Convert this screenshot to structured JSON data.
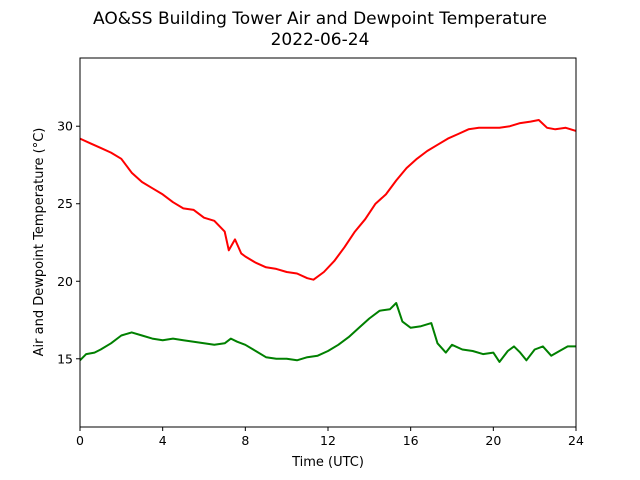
{
  "chart_data": {
    "type": "line",
    "title": "AO&SS Building Tower Air and Dewpoint Temperature",
    "subtitle": "2022-06-24",
    "xlabel": "Time (UTC)",
    "ylabel": "Air and Dewpoint Temperature (°C)",
    "xlim": [
      0,
      24
    ],
    "ylim": [
      10.6,
      34.4
    ],
    "x_ticks": [
      0,
      4,
      8,
      12,
      16,
      20,
      24
    ],
    "y_ticks": [
      15,
      20,
      25,
      30
    ],
    "grid": false,
    "legend": "none",
    "series": [
      {
        "color": "#ff0000",
        "points": [
          [
            0,
            29.2
          ],
          [
            0.5,
            28.9
          ],
          [
            1,
            28.6
          ],
          [
            1.5,
            28.3
          ],
          [
            2,
            27.9
          ],
          [
            2.5,
            27.0
          ],
          [
            3,
            26.4
          ],
          [
            3.5,
            26.0
          ],
          [
            4,
            25.6
          ],
          [
            4.5,
            25.1
          ],
          [
            5,
            24.7
          ],
          [
            5.5,
            24.6
          ],
          [
            6,
            24.1
          ],
          [
            6.5,
            23.9
          ],
          [
            7,
            23.2
          ],
          [
            7.2,
            22.0
          ],
          [
            7.5,
            22.7
          ],
          [
            7.8,
            21.8
          ],
          [
            8,
            21.6
          ],
          [
            8.5,
            21.2
          ],
          [
            9,
            20.9
          ],
          [
            9.5,
            20.8
          ],
          [
            10,
            20.6
          ],
          [
            10.5,
            20.5
          ],
          [
            11,
            20.2
          ],
          [
            11.3,
            20.1
          ],
          [
            11.8,
            20.6
          ],
          [
            12.3,
            21.3
          ],
          [
            12.8,
            22.2
          ],
          [
            13.3,
            23.2
          ],
          [
            13.8,
            24.0
          ],
          [
            14.3,
            25.0
          ],
          [
            14.8,
            25.6
          ],
          [
            15.3,
            26.5
          ],
          [
            15.8,
            27.3
          ],
          [
            16.3,
            27.9
          ],
          [
            16.8,
            28.4
          ],
          [
            17.3,
            28.8
          ],
          [
            17.8,
            29.2
          ],
          [
            18.3,
            29.5
          ],
          [
            18.8,
            29.8
          ],
          [
            19.3,
            29.9
          ],
          [
            19.8,
            29.9
          ],
          [
            20.3,
            29.9
          ],
          [
            20.8,
            30.0
          ],
          [
            21.3,
            30.2
          ],
          [
            21.8,
            30.3
          ],
          [
            22.2,
            30.4
          ],
          [
            22.6,
            29.9
          ],
          [
            23,
            29.8
          ],
          [
            23.5,
            29.9
          ],
          [
            24,
            29.7
          ]
        ]
      },
      {
        "color": "#008000",
        "points": [
          [
            0,
            14.9
          ],
          [
            0.3,
            15.3
          ],
          [
            0.7,
            15.4
          ],
          [
            1,
            15.6
          ],
          [
            1.5,
            16.0
          ],
          [
            2,
            16.5
          ],
          [
            2.5,
            16.7
          ],
          [
            3,
            16.5
          ],
          [
            3.5,
            16.3
          ],
          [
            4,
            16.2
          ],
          [
            4.5,
            16.3
          ],
          [
            5,
            16.2
          ],
          [
            5.5,
            16.1
          ],
          [
            6,
            16.0
          ],
          [
            6.5,
            15.9
          ],
          [
            7,
            16.0
          ],
          [
            7.3,
            16.3
          ],
          [
            7.6,
            16.1
          ],
          [
            8,
            15.9
          ],
          [
            8.5,
            15.5
          ],
          [
            9,
            15.1
          ],
          [
            9.5,
            15.0
          ],
          [
            10,
            15.0
          ],
          [
            10.5,
            14.9
          ],
          [
            11,
            15.1
          ],
          [
            11.5,
            15.2
          ],
          [
            12,
            15.5
          ],
          [
            12.5,
            15.9
          ],
          [
            13,
            16.4
          ],
          [
            13.5,
            17.0
          ],
          [
            14,
            17.6
          ],
          [
            14.5,
            18.1
          ],
          [
            15,
            18.2
          ],
          [
            15.3,
            18.6
          ],
          [
            15.6,
            17.4
          ],
          [
            16,
            17.0
          ],
          [
            16.5,
            17.1
          ],
          [
            17,
            17.3
          ],
          [
            17.3,
            16.0
          ],
          [
            17.7,
            15.4
          ],
          [
            18,
            15.9
          ],
          [
            18.5,
            15.6
          ],
          [
            19,
            15.5
          ],
          [
            19.5,
            15.3
          ],
          [
            20,
            15.4
          ],
          [
            20.3,
            14.8
          ],
          [
            20.7,
            15.5
          ],
          [
            21,
            15.8
          ],
          [
            21.3,
            15.4
          ],
          [
            21.6,
            14.9
          ],
          [
            22,
            15.6
          ],
          [
            22.4,
            15.8
          ],
          [
            22.8,
            15.2
          ],
          [
            23.2,
            15.5
          ],
          [
            23.6,
            15.8
          ],
          [
            24,
            15.8
          ]
        ]
      }
    ]
  }
}
